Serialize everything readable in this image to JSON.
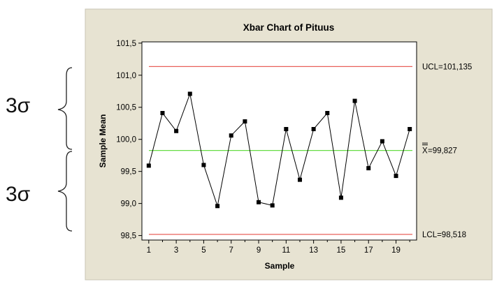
{
  "annotations": {
    "upper_sigma": "3σ",
    "lower_sigma": "3σ"
  },
  "colors": {
    "frame_bg": "#e7e3d2",
    "plot_bg": "#ffffff",
    "control_limit": "#e8615a",
    "center_line": "#66dd44",
    "data_line": "#000000",
    "bracket": "#222222"
  },
  "chart_data": {
    "type": "line",
    "title": "Xbar Chart of Pituus",
    "xlabel": "Sample",
    "ylabel": "Sample Mean",
    "xlim": [
      0.5,
      20.5
    ],
    "ylim": [
      98.43,
      101.52
    ],
    "y_ticks": [
      98.5,
      99.0,
      99.5,
      100.0,
      100.5,
      101.0,
      101.5
    ],
    "y_tick_labels": [
      "98,5",
      "99,0",
      "99,5",
      "100,0",
      "100,5",
      "101,0",
      "101,5"
    ],
    "x_ticks": [
      1,
      3,
      5,
      7,
      9,
      11,
      13,
      15,
      17,
      19
    ],
    "x_tick_labels": [
      "1",
      "3",
      "5",
      "7",
      "9",
      "11",
      "13",
      "15",
      "17",
      "19"
    ],
    "grid": false,
    "x": [
      1,
      2,
      3,
      4,
      5,
      6,
      7,
      8,
      9,
      10,
      11,
      12,
      13,
      14,
      15,
      16,
      17,
      18,
      19,
      20
    ],
    "series": [
      {
        "values": [
          99.59,
          100.41,
          100.13,
          100.71,
          99.6,
          98.96,
          100.06,
          100.28,
          99.02,
          98.97,
          100.16,
          99.37,
          100.16,
          100.41,
          99.09,
          100.6,
          99.55,
          99.97,
          99.43,
          100.16
        ]
      }
    ],
    "control_limits": {
      "ucl": 101.135,
      "ucl_label": "UCL=101,135",
      "center": 99.827,
      "center_label_symbol": "X",
      "center_label_text": "=99,827",
      "lcl": 98.518,
      "lcl_label": "LCL=98,518"
    }
  }
}
